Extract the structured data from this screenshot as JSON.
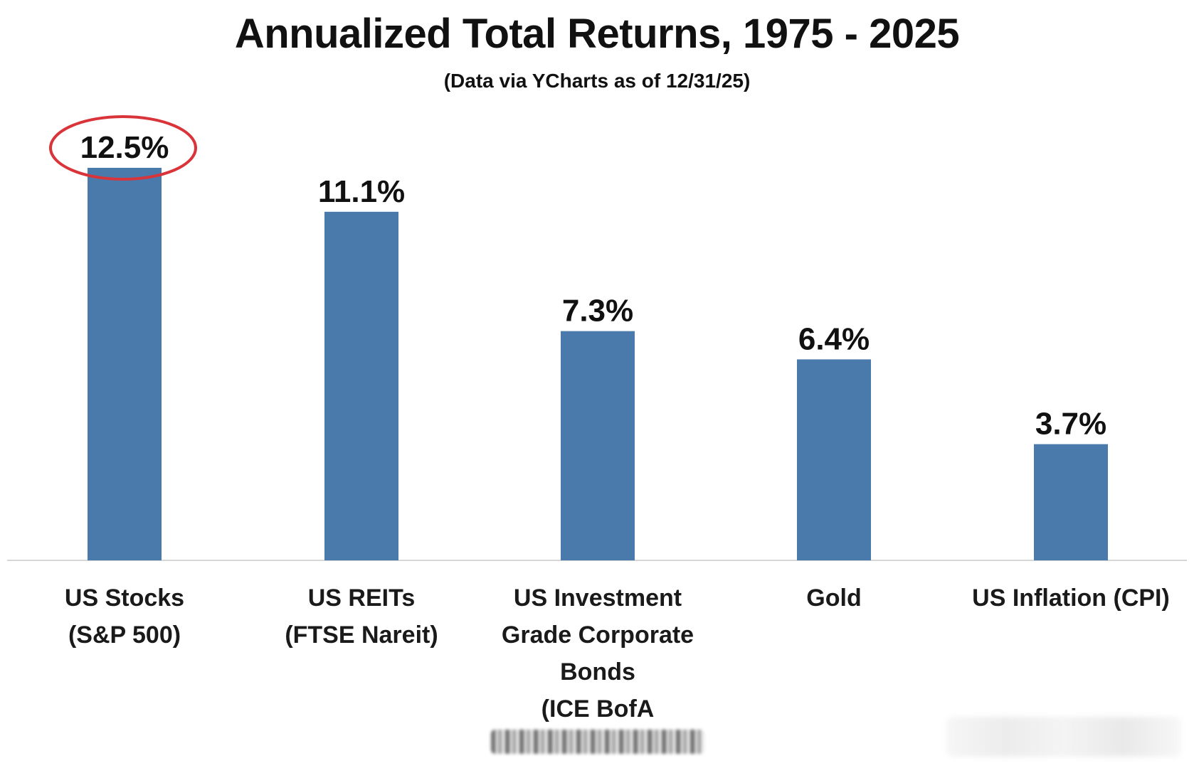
{
  "chart_data": {
    "type": "bar",
    "title": "Annualized Total Returns, 1975 - 2025",
    "subtitle": "(Data via YCharts as of 12/31/25)",
    "categories": [
      [
        "US Stocks",
        "(S&P 500)"
      ],
      [
        "US REITs",
        "(FTSE Nareit)"
      ],
      [
        "US Investment",
        "Grade Corporate",
        "Bonds",
        "(ICE BofA"
      ],
      [
        "Gold"
      ],
      [
        "US Inflation (CPI)"
      ]
    ],
    "values": [
      12.5,
      11.1,
      7.3,
      6.4,
      3.7
    ],
    "value_labels": [
      "12.5%",
      "11.1%",
      "7.3%",
      "6.4%",
      "3.7%"
    ],
    "unit": "%",
    "ylim": [
      0,
      14
    ],
    "grid": false,
    "legend": "none",
    "highlight": {
      "index": 0,
      "shape": "ellipse"
    }
  },
  "colors": {
    "bar": "#4a79ab",
    "axis": "#d6d6d6",
    "highlight": "#d9343a",
    "text": "#111111"
  }
}
